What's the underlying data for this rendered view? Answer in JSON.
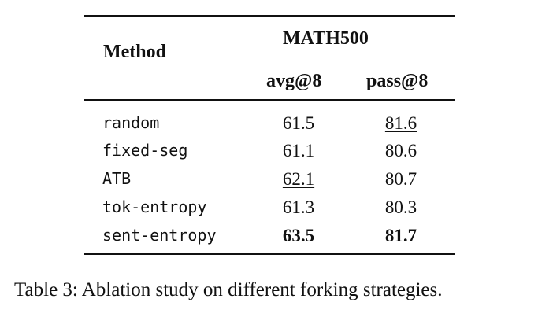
{
  "table": {
    "header": {
      "method": "Method",
      "group": "MATH500",
      "col_avg": "avg@8",
      "col_pass": "pass@8"
    },
    "rows": [
      {
        "method": "random",
        "avg": "61.5",
        "pass": "81.6"
      },
      {
        "method": "fixed-seg",
        "avg": "61.1",
        "pass": "80.6"
      },
      {
        "method": "ATB",
        "avg": "62.1",
        "pass": "80.7"
      },
      {
        "method": "tok-entropy",
        "avg": "61.3",
        "pass": "80.3"
      },
      {
        "method": "sent-entropy",
        "avg": "63.5",
        "pass": "81.7"
      }
    ]
  },
  "caption": "Table 3: Ablation study on different forking strategies."
}
